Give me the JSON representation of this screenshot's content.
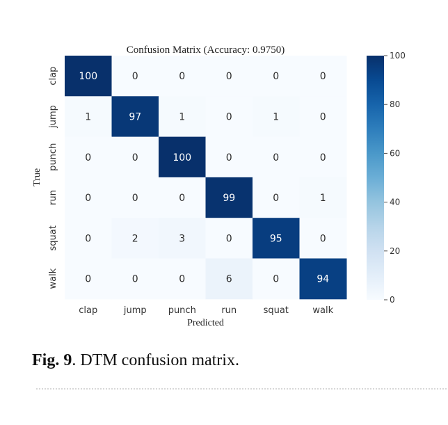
{
  "chart_data": {
    "type": "heatmap",
    "title": "Confusion Matrix (Accuracy: 0.9750)",
    "xlabel": "Predicted",
    "ylabel": "True",
    "x_categories": [
      "clap",
      "jump",
      "punch",
      "run",
      "squat",
      "walk"
    ],
    "y_categories": [
      "clap",
      "jump",
      "punch",
      "run",
      "squat",
      "walk"
    ],
    "values": [
      [
        100,
        0,
        0,
        0,
        0,
        0
      ],
      [
        1,
        97,
        1,
        0,
        1,
        0
      ],
      [
        0,
        0,
        100,
        0,
        0,
        0
      ],
      [
        0,
        0,
        0,
        99,
        0,
        1
      ],
      [
        0,
        2,
        3,
        0,
        95,
        0
      ],
      [
        0,
        0,
        0,
        6,
        0,
        94
      ]
    ],
    "colorbar": {
      "min": 0,
      "max": 100,
      "ticks": [
        0,
        20,
        40,
        60,
        80,
        100
      ]
    },
    "colormap": "Blues",
    "colors": {
      "low": "#f7fbff",
      "high": "#08306b"
    }
  },
  "caption": {
    "label": "Fig. 9",
    "text": ".  DTM confusion matrix."
  }
}
